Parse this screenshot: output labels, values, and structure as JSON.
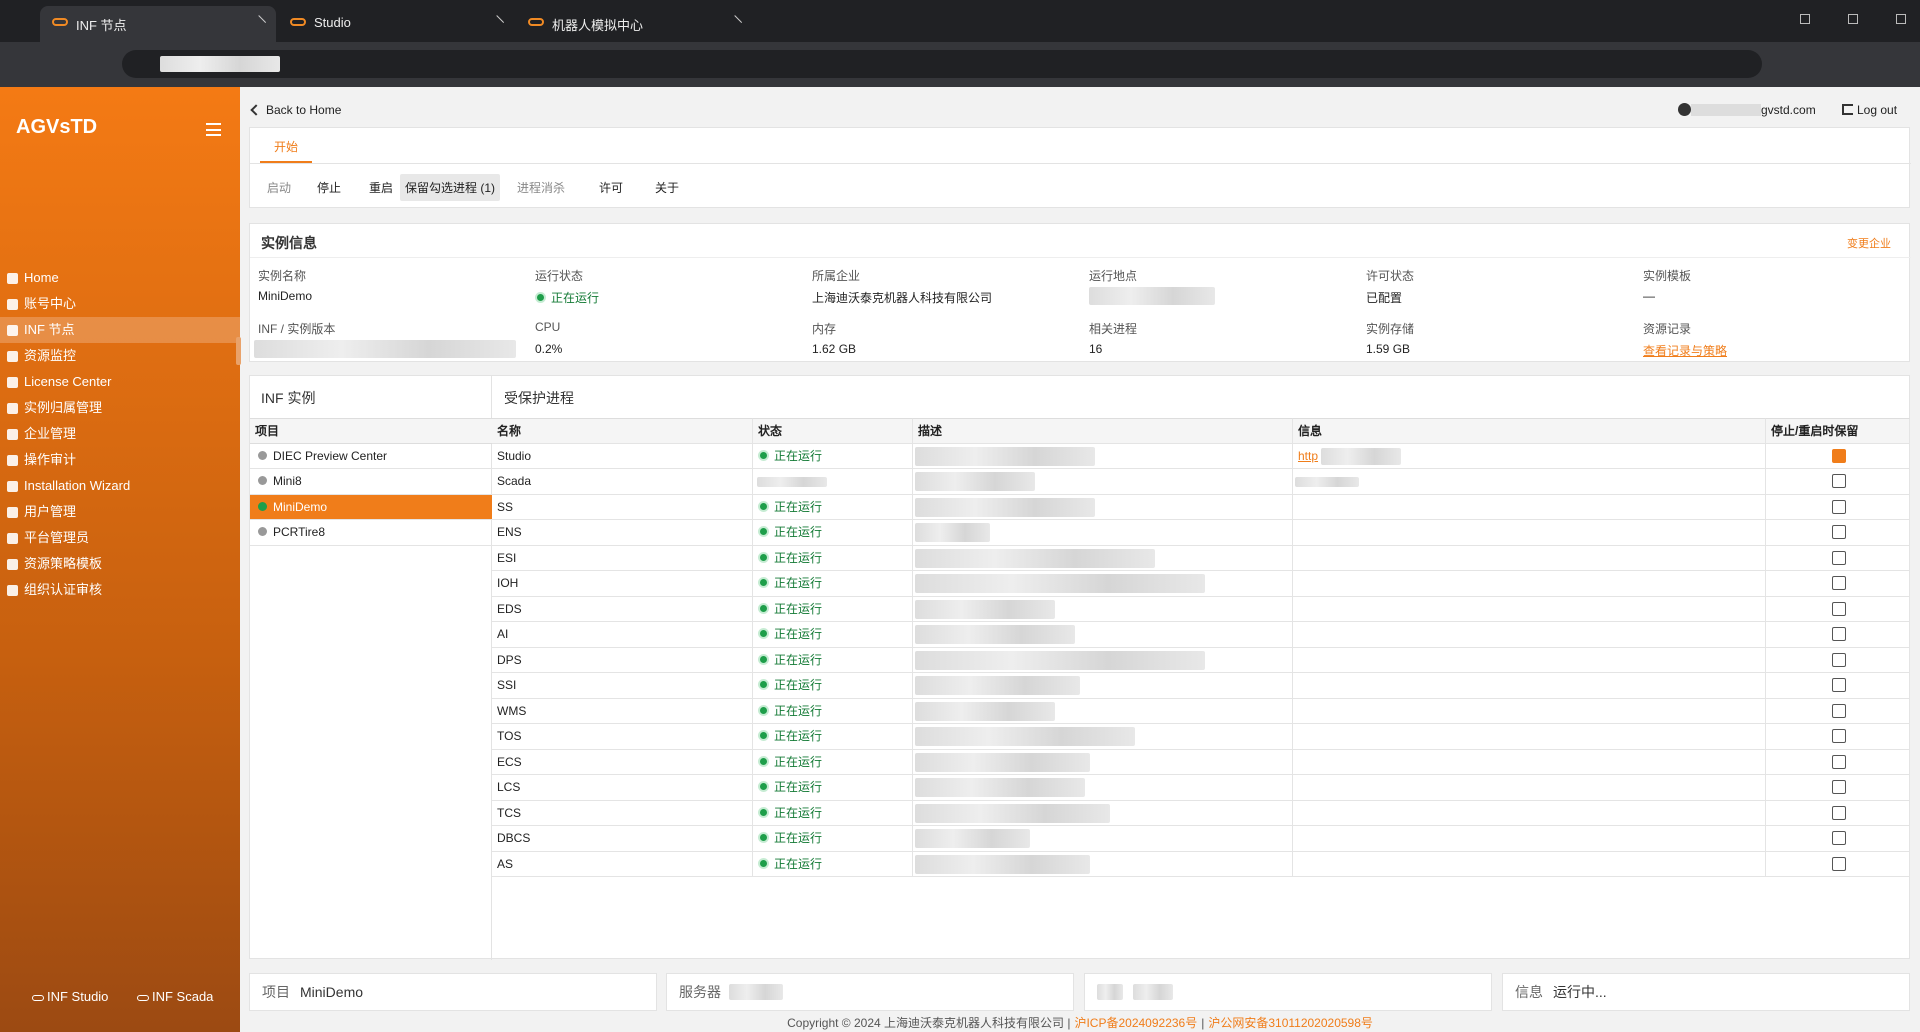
{
  "browser": {
    "tabs": [
      "INF 节点",
      "Studio",
      "机器人模拟中心"
    ]
  },
  "sidebar": {
    "brand": "AGVsTD",
    "nav": [
      {
        "label": "Home"
      },
      {
        "label": "账号中心"
      },
      {
        "label": "INF 节点",
        "selected": true
      },
      {
        "label": "资源监控"
      },
      {
        "label": "License Center"
      },
      {
        "label": "实例归属管理"
      },
      {
        "label": "企业管理"
      },
      {
        "label": "操作审计"
      },
      {
        "label": "Installation Wizard"
      },
      {
        "label": "用户管理"
      },
      {
        "label": "平台管理员"
      },
      {
        "label": "资源策略模板"
      },
      {
        "label": "组织认证审核"
      }
    ],
    "footer_links": [
      "INF Studio",
      "INF Scada"
    ]
  },
  "header": {
    "back": "Back to Home",
    "user_suffix": "gvstd.com",
    "logout": "Log out"
  },
  "tabs": [
    "开始"
  ],
  "toolbar": [
    {
      "label": "启动",
      "enabled": false
    },
    {
      "label": "停止",
      "enabled": true
    },
    {
      "label": "重启",
      "enabled": true
    },
    {
      "label": "保留勾选进程 (1)",
      "enabled": true,
      "pressed": true
    },
    {
      "label": "进程消杀",
      "enabled": false
    },
    {
      "label": "许可",
      "enabled": true
    },
    {
      "label": "关于",
      "enabled": true
    }
  ],
  "instance_info": {
    "title": "实例信息",
    "change": "变更企业",
    "fields": [
      {
        "label": "实例名称",
        "value": "MiniDemo"
      },
      {
        "label": "运行状态",
        "value": "正在运行",
        "status": true
      },
      {
        "label": "所属企业",
        "value": "上海迪沃泰克机器人科技有限公司"
      },
      {
        "label": "运行地点"
      },
      {
        "label": "许可状态",
        "value": "已配置"
      },
      {
        "label": "实例模板",
        "value": "—"
      },
      {
        "label": "INF / 实例版本"
      },
      {
        "label": "CPU",
        "value": "0.2%"
      },
      {
        "label": "内存",
        "value": "1.62 GB"
      },
      {
        "label": "相关进程",
        "value": "16"
      },
      {
        "label": "实例存储",
        "value": "1.59 GB"
      },
      {
        "label": "资源记录",
        "value": "查看记录与策略",
        "link": true
      }
    ]
  },
  "inf_instances": {
    "title": "INF 实例",
    "header": "项目",
    "items": [
      {
        "name": "DIEC Preview Center"
      },
      {
        "name": "Mini8"
      },
      {
        "name": "MiniDemo",
        "selected": true
      },
      {
        "name": "PCRTire8"
      }
    ]
  },
  "processes": {
    "title": "受保护进程",
    "columns": [
      "名称",
      "状态",
      "描述",
      "信息",
      "停止/重启时保留"
    ],
    "rows": [
      {
        "name": "Studio",
        "status": "正在运行",
        "info": "http",
        "keep": true
      },
      {
        "name": "Scada",
        "keep": false
      },
      {
        "name": "SS",
        "status": "正在运行",
        "keep": false
      },
      {
        "name": "ENS",
        "status": "正在运行",
        "keep": false
      },
      {
        "name": "ESI",
        "status": "正在运行",
        "keep": false
      },
      {
        "name": "IOH",
        "status": "正在运行",
        "keep": false
      },
      {
        "name": "EDS",
        "status": "正在运行",
        "keep": false
      },
      {
        "name": "AI",
        "status": "正在运行",
        "keep": false
      },
      {
        "name": "DPS",
        "status": "正在运行",
        "keep": false
      },
      {
        "name": "SSI",
        "status": "正在运行",
        "keep": false
      },
      {
        "name": "WMS",
        "status": "正在运行",
        "keep": false
      },
      {
        "name": "TOS",
        "status": "正在运行",
        "keep": false
      },
      {
        "name": "ECS",
        "status": "正在运行",
        "keep": false
      },
      {
        "name": "LCS",
        "status": "正在运行",
        "keep": false
      },
      {
        "name": "TCS",
        "status": "正在运行",
        "keep": false
      },
      {
        "name": "DBCS",
        "status": "正在运行",
        "keep": false
      },
      {
        "name": "AS",
        "status": "正在运行",
        "keep": false
      }
    ]
  },
  "status_bar": [
    {
      "label": "项目",
      "value": "MiniDemo"
    },
    {
      "label": "服务器"
    },
    {},
    {
      "label": "信息",
      "value": "运行中..."
    }
  ],
  "copyright": {
    "text": "Copyright © 2024 上海迪沃泰克机器人科技有限公司 |",
    "icp": "沪ICP备2024092236号",
    "sep": "|",
    "police": "沪公网安备31011202020598号"
  }
}
